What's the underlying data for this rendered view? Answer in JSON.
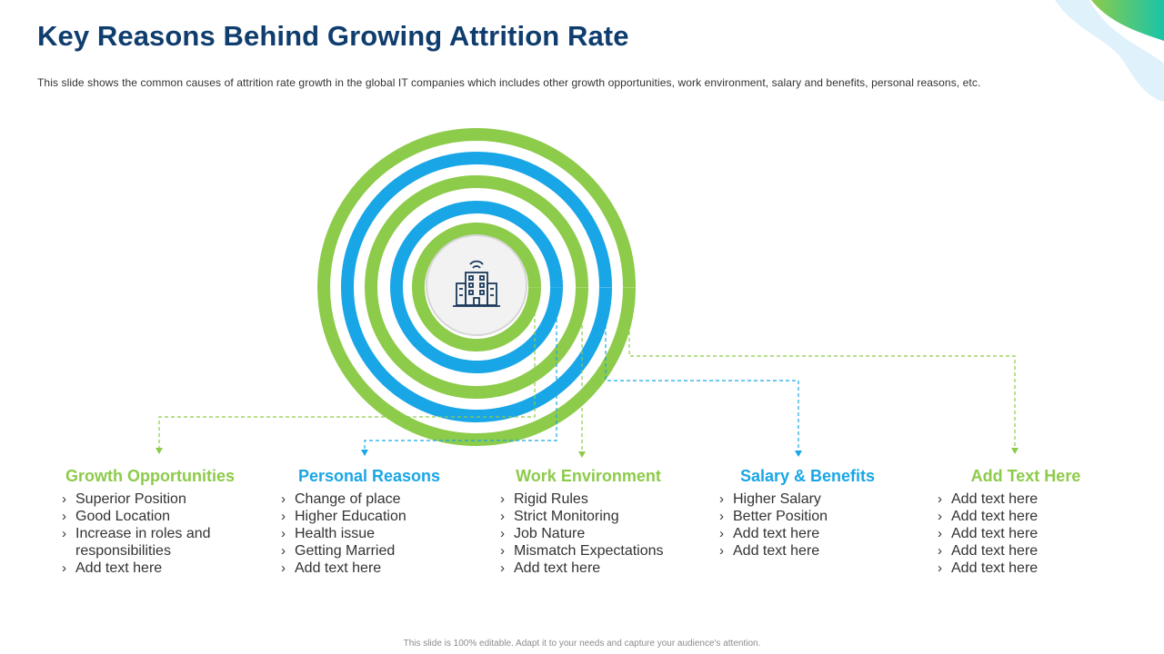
{
  "header": {
    "title": "Key Reasons Behind Growing Attrition Rate",
    "subtitle": "This slide shows the common causes of attrition rate growth in the global IT companies which includes other growth opportunities, work environment,  salary and benefits, personal reasons, etc."
  },
  "center": {
    "icon": "office-building-icon"
  },
  "colors": {
    "green": "#8dcb4a",
    "blue": "#19a6e6",
    "title": "#0f3d6e"
  },
  "categories": [
    {
      "title": "Growth Opportunities",
      "color": "green",
      "items": [
        "Superior Position",
        "Good Location",
        "Increase  in roles and",
        "Add text here"
      ],
      "wrapped": "responsibilities"
    },
    {
      "title": "Personal Reasons",
      "color": "blue",
      "items": [
        "Change of place",
        "Higher Education",
        "Health issue",
        "Getting Married",
        "Add text here"
      ]
    },
    {
      "title": "Work Environment",
      "color": "green",
      "items": [
        "Rigid Rules",
        "Strict Monitoring",
        "Job Nature",
        "Mismatch Expectations",
        "Add text here"
      ]
    },
    {
      "title": "Salary & Benefits",
      "color": "blue",
      "items": [
        "Higher Salary",
        "Better Position",
        "Add text here",
        "Add text here"
      ]
    },
    {
      "title": "Add Text Here",
      "color": "green",
      "items": [
        "Add text here",
        "Add text here",
        "Add text here",
        "Add text here",
        "Add text here"
      ]
    }
  ],
  "footer": {
    "note": "This slide is 100% editable. Adapt it to your needs and capture your audience's attention."
  }
}
